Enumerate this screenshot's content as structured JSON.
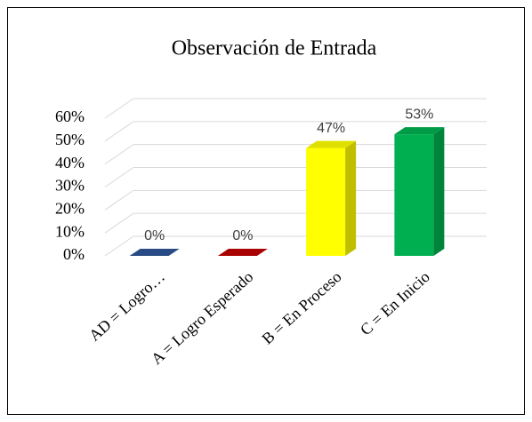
{
  "chart_data": {
    "type": "bar3d",
    "title": "Observación de Entrada",
    "categories": [
      "AD = Logro…",
      "A = Logro Esperado",
      "B = En Proceso",
      "C = En Inicio"
    ],
    "values": [
      0,
      0,
      47,
      53
    ],
    "value_labels": [
      "0%",
      "0%",
      "47%",
      "53%"
    ],
    "colors": [
      "#2e5597",
      "#c00000",
      "#ffff00",
      "#00b050"
    ],
    "ylim": [
      0,
      60
    ],
    "yticks": [
      {
        "value": 0,
        "label": "0%"
      },
      {
        "value": 10,
        "label": "10%"
      },
      {
        "value": 20,
        "label": "20%"
      },
      {
        "value": 30,
        "label": "30%"
      },
      {
        "value": 40,
        "label": "40%"
      },
      {
        "value": 50,
        "label": "50%"
      },
      {
        "value": 60,
        "label": "60%"
      }
    ],
    "grid": true
  }
}
